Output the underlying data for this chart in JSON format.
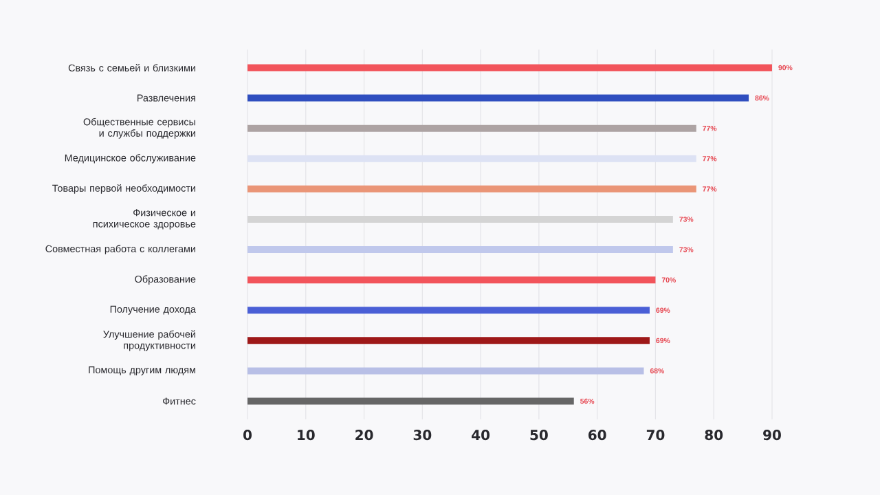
{
  "chart_data": {
    "type": "bar",
    "orientation": "horizontal",
    "categories": [
      "Связь с семьей и близкими",
      "Развлечения",
      "Общественные сервисы и службы поддержки",
      "Медицинское обслуживание",
      "Товары первой необходимости",
      "Физическое и психическое здоровье",
      "Совместная работа с коллегами",
      "Образование",
      "Получение дохода",
      "Улучшение рабочей продуктивности",
      "Помощь другим людям",
      "Фитнес"
    ],
    "values": [
      90,
      86,
      77,
      77,
      77,
      73,
      73,
      70,
      69,
      69,
      68,
      56
    ],
    "value_labels": [
      "90%",
      "86%",
      "77%",
      "77%",
      "77%",
      "73%",
      "73%",
      "70%",
      "69%",
      "69%",
      "68%",
      "56%"
    ],
    "colors": [
      "#f2545b",
      "#2f4ebf",
      "#ada3a3",
      "#dde2f4",
      "#ea9577",
      "#d4d4d4",
      "#c0c8ec",
      "#f2545b",
      "#4a5fd6",
      "#9e1818",
      "#b8bfe6",
      "#666666"
    ],
    "xlim": [
      0,
      90
    ],
    "xticks": [
      0,
      10,
      20,
      30,
      40,
      50,
      60,
      70,
      80,
      90
    ],
    "grid": "x"
  }
}
